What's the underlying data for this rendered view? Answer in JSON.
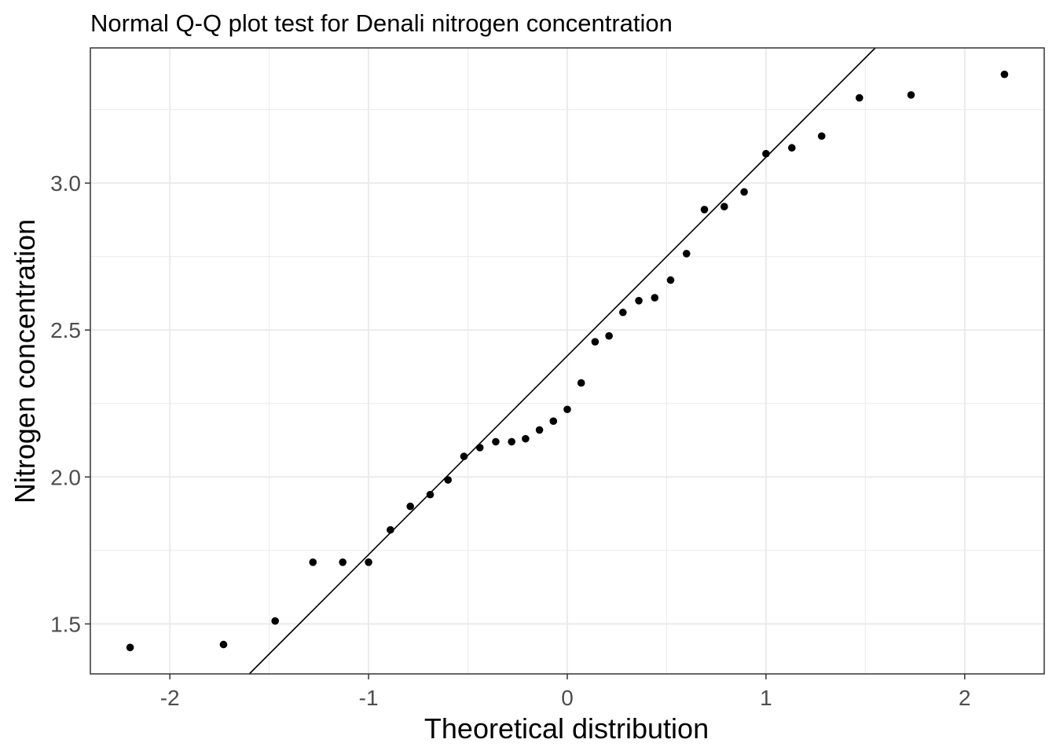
{
  "chart_data": {
    "type": "scatter",
    "title": "Normal Q-Q plot test for Denali nitrogen concentration",
    "xlabel": "Theoretical distribution",
    "ylabel": "Nitrogen concentration",
    "xlim": [
      -2.4,
      2.4
    ],
    "ylim": [
      1.33,
      3.46
    ],
    "xticks": [
      -2,
      -1,
      0,
      1,
      2
    ],
    "xtick_labels": [
      "-2",
      "-1",
      "0",
      "1",
      "2"
    ],
    "yticks": [
      1.5,
      2.0,
      2.5,
      3.0
    ],
    "ytick_labels": [
      "1.5",
      "2.0",
      "2.5",
      "3.0"
    ],
    "grid": true,
    "legend": "none",
    "colors": {
      "points": "#000000",
      "reference_line": "#000000",
      "grid": "#ebebeb",
      "panel_border": "#333333"
    },
    "reference_line": {
      "x": [
        -1.6,
        1.55
      ],
      "y": [
        1.33,
        3.46
      ]
    },
    "points": {
      "x": [
        -2.2,
        -1.73,
        -1.47,
        -1.28,
        -1.13,
        -1.0,
        -0.89,
        -0.79,
        -0.69,
        -0.6,
        -0.52,
        -0.44,
        -0.36,
        -0.28,
        -0.21,
        -0.14,
        -0.07,
        0.0,
        0.07,
        0.14,
        0.21,
        0.28,
        0.36,
        0.44,
        0.52,
        0.6,
        0.69,
        0.79,
        0.89,
        1.0,
        1.13,
        1.28,
        1.47,
        1.73,
        2.2
      ],
      "y": [
        1.42,
        1.43,
        1.51,
        1.71,
        1.71,
        1.71,
        1.82,
        1.9,
        1.94,
        1.99,
        2.07,
        2.1,
        2.12,
        2.12,
        2.13,
        2.16,
        2.19,
        2.23,
        2.32,
        2.46,
        2.48,
        2.56,
        2.6,
        2.61,
        2.67,
        2.76,
        2.91,
        2.92,
        2.97,
        3.1,
        3.12,
        3.16,
        3.29,
        3.3,
        3.37
      ]
    }
  }
}
